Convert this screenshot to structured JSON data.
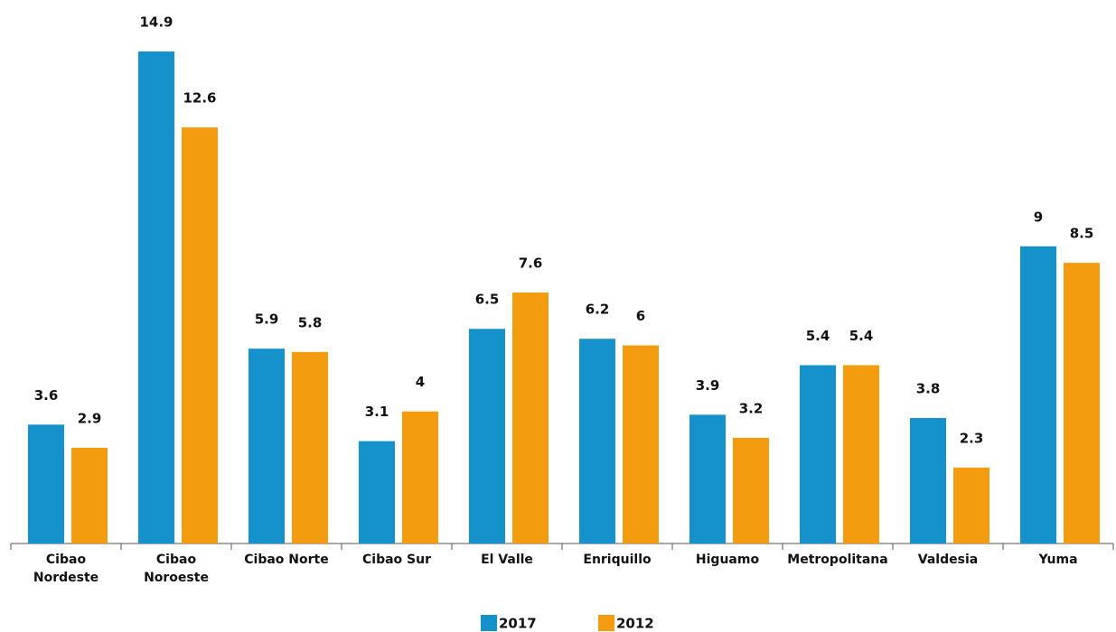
{
  "chart_data": {
    "type": "bar",
    "categories": [
      "Cibao Nordeste",
      "Cibao Noroeste",
      "Cibao Norte",
      "Cibao Sur",
      "El Valle",
      "Enriquillo",
      "Higuamo",
      "Metropolitana",
      "Valdesia",
      "Yuma"
    ],
    "series": [
      {
        "name": "2017",
        "color": "#1591cc",
        "values": [
          3.6,
          14.9,
          5.9,
          3.1,
          6.5,
          6.2,
          3.9,
          5.4,
          3.8,
          9
        ]
      },
      {
        "name": "2012",
        "color": "#f39c0f",
        "values": [
          2.9,
          12.6,
          5.8,
          4,
          7.6,
          6,
          3.2,
          5.4,
          2.3,
          8.5
        ]
      }
    ],
    "grid": false,
    "legend": "bottom"
  }
}
